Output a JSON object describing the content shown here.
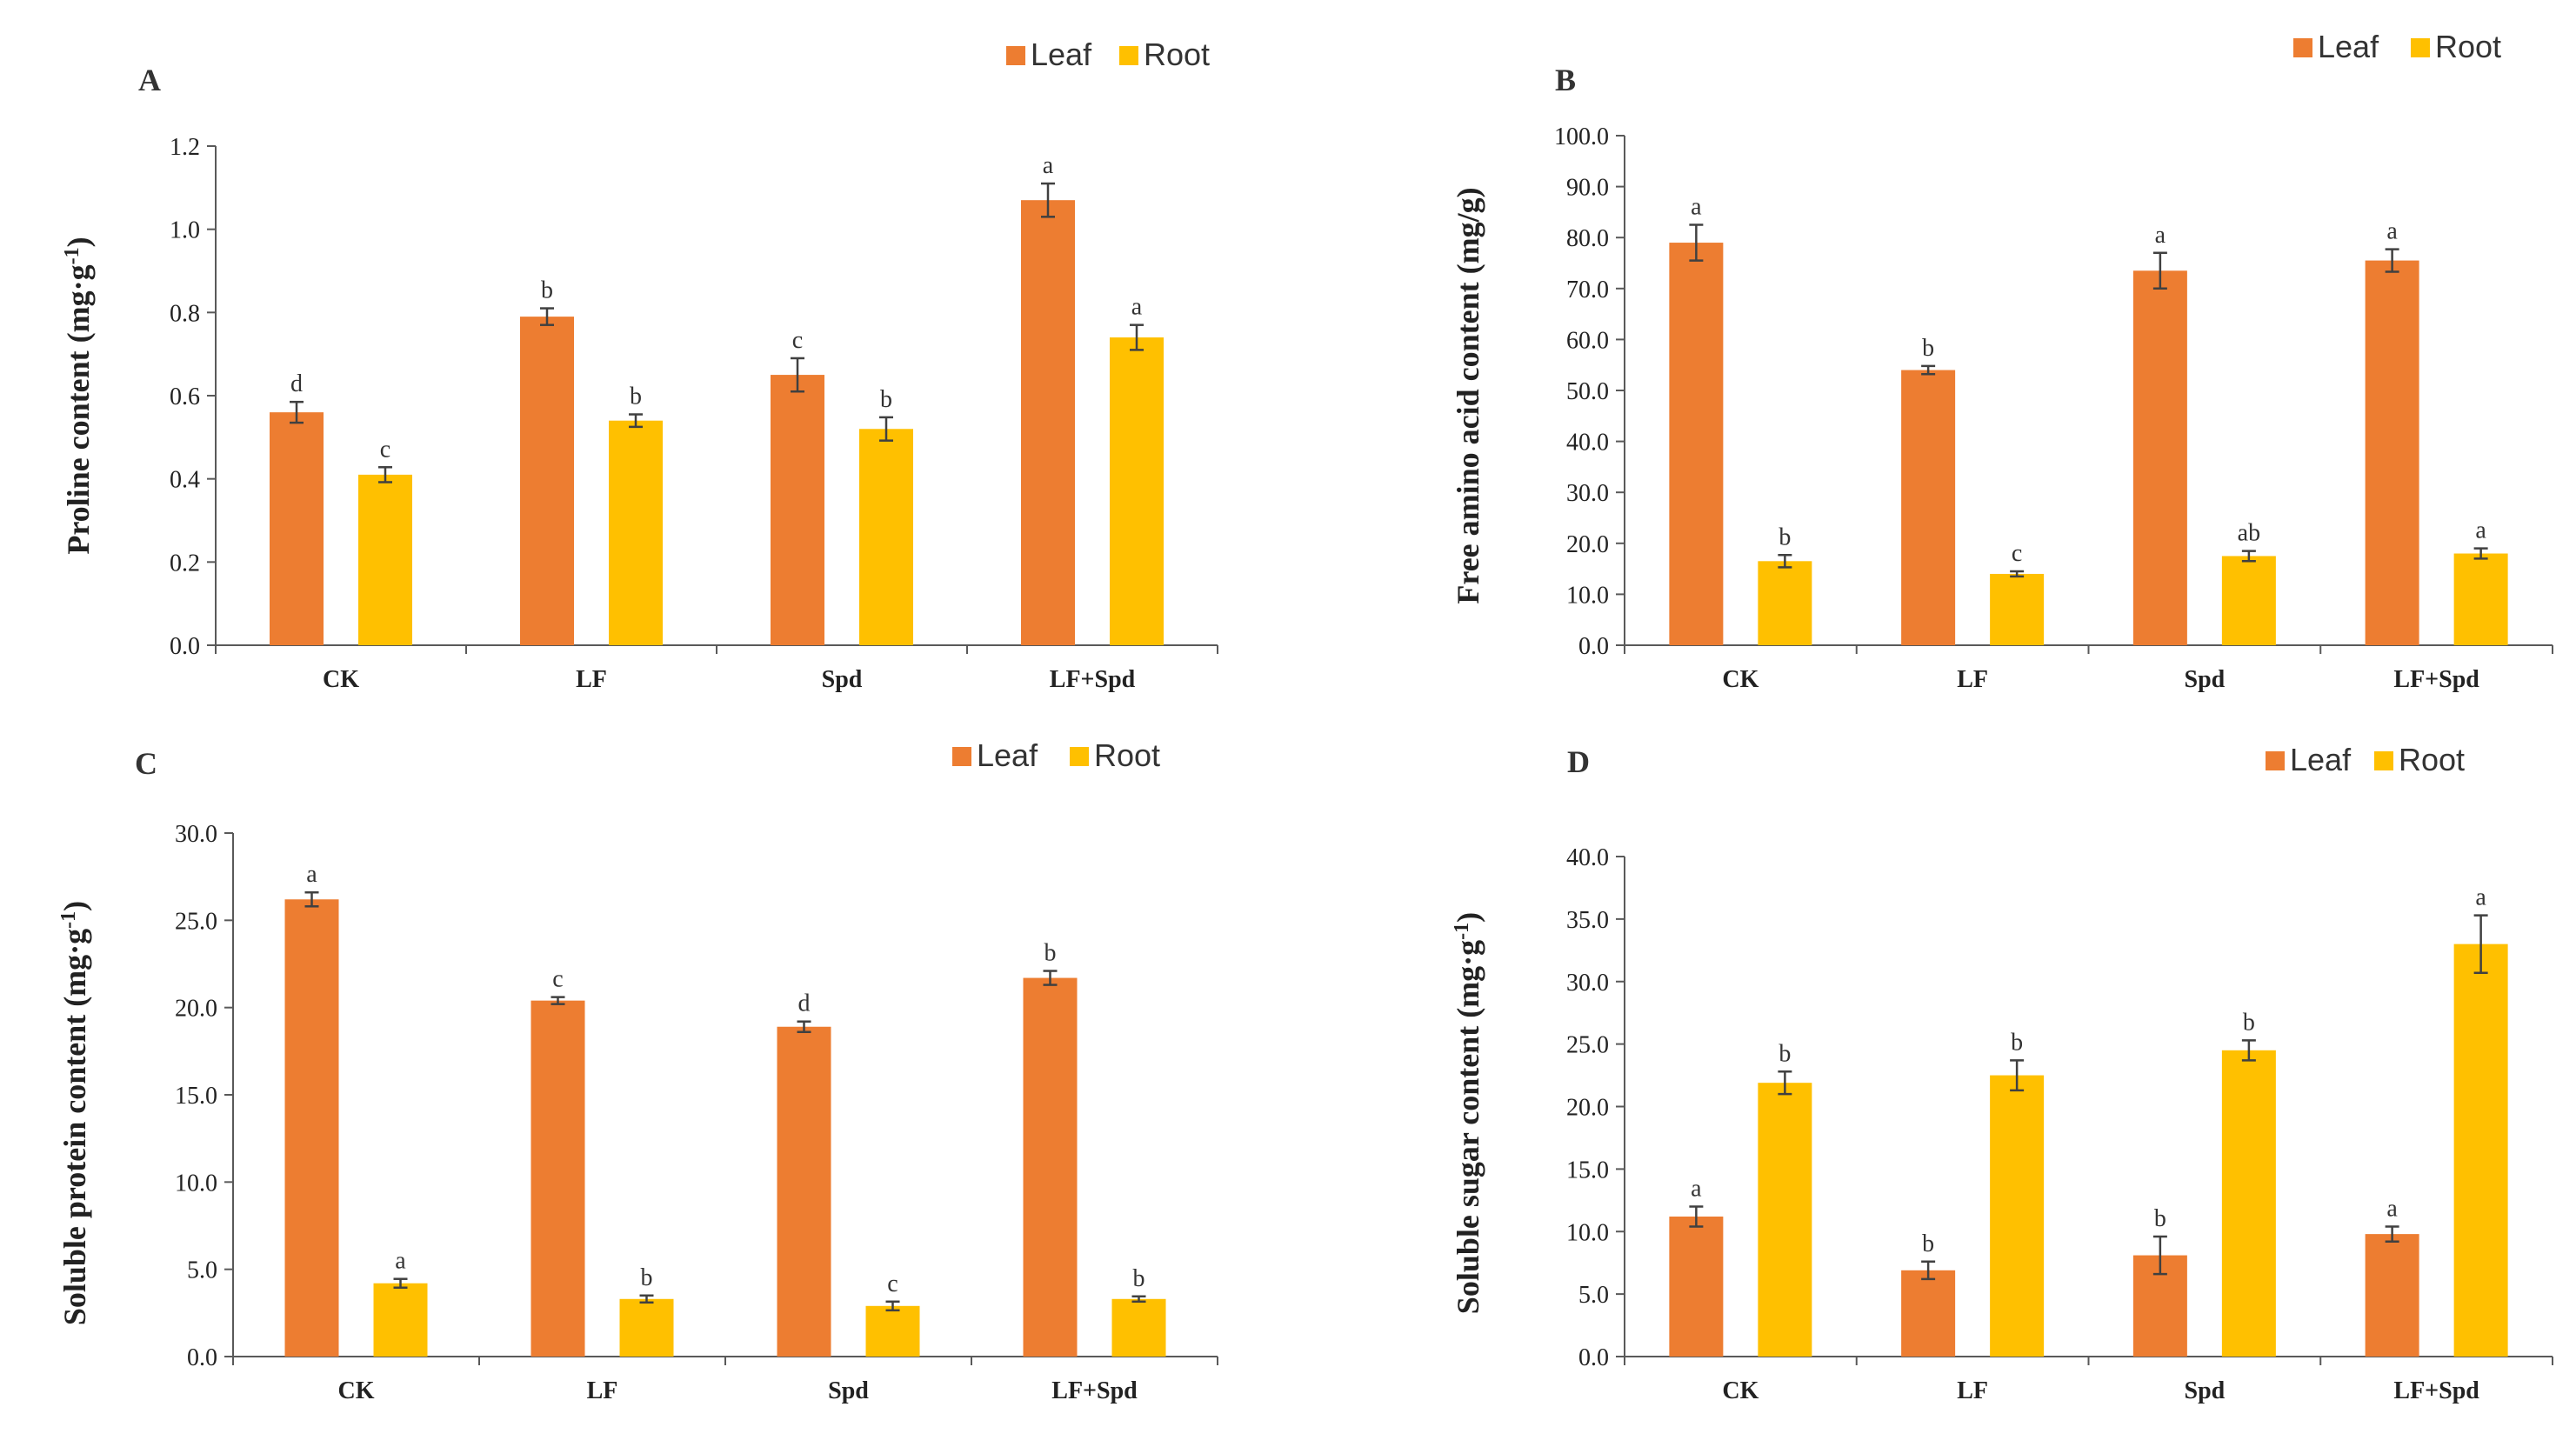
{
  "colors": {
    "leaf": "#ED7D31",
    "root": "#FFC000",
    "axis": "#595959",
    "error": "#404040"
  },
  "chart_data": [
    {
      "type": "bar",
      "panel": "A",
      "ylabel_main": "Proline content (mg·g",
      "ylabel_sup": "-1",
      "ylabel_end": ")",
      "categories": [
        "CK",
        "LF",
        "Spd",
        "LF+Spd"
      ],
      "ylim": [
        0,
        1.2
      ],
      "ystep": 0.2,
      "ydecimals": 1,
      "legend": [
        "Leaf",
        "Root"
      ],
      "series": [
        {
          "name": "Leaf",
          "values": [
            0.56,
            0.79,
            0.65,
            1.07
          ],
          "errors": [
            0.025,
            0.02,
            0.04,
            0.04
          ],
          "labels": [
            "d",
            "b",
            "c",
            "a"
          ]
        },
        {
          "name": "Root",
          "values": [
            0.41,
            0.54,
            0.52,
            0.74
          ],
          "errors": [
            0.018,
            0.015,
            0.028,
            0.03
          ],
          "labels": [
            "c",
            "b",
            "b",
            "a"
          ]
        }
      ]
    },
    {
      "type": "bar",
      "panel": "B",
      "ylabel_main": "Free amino acid content (mg/g)",
      "ylabel_sup": "",
      "ylabel_end": "",
      "categories": [
        "CK",
        "LF",
        "Spd",
        "LF+Spd"
      ],
      "ylim": [
        0,
        100
      ],
      "ystep": 10,
      "ydecimals": 1,
      "legend": [
        "Leaf",
        "Root"
      ],
      "series": [
        {
          "name": "Leaf",
          "values": [
            79.0,
            54.0,
            73.5,
            75.5
          ],
          "errors": [
            3.5,
            0.8,
            3.5,
            2.2
          ],
          "labels": [
            "a",
            "b",
            "a",
            "a"
          ]
        },
        {
          "name": "Root",
          "values": [
            16.5,
            14.0,
            17.5,
            18.0
          ],
          "errors": [
            1.2,
            0.5,
            1.0,
            1.0
          ],
          "labels": [
            "b",
            "c",
            "ab",
            "a"
          ]
        }
      ]
    },
    {
      "type": "bar",
      "panel": "C",
      "ylabel_main": "Soluble protein content (mg·g",
      "ylabel_sup": "-1",
      "ylabel_end": ")",
      "categories": [
        "CK",
        "LF",
        "Spd",
        "LF+Spd"
      ],
      "ylim": [
        0,
        30
      ],
      "ystep": 5,
      "ydecimals": 1,
      "legend": [
        "Leaf",
        "Root"
      ],
      "series": [
        {
          "name": "Leaf",
          "values": [
            26.2,
            20.4,
            18.9,
            21.7
          ],
          "errors": [
            0.4,
            0.2,
            0.3,
            0.4
          ],
          "labels": [
            "a",
            "c",
            "d",
            "b"
          ]
        },
        {
          "name": "Root",
          "values": [
            4.2,
            3.3,
            2.9,
            3.3
          ],
          "errors": [
            0.25,
            0.2,
            0.25,
            0.15
          ],
          "labels": [
            "a",
            "b",
            "c",
            "b"
          ]
        }
      ]
    },
    {
      "type": "bar",
      "panel": "D",
      "ylabel_main": "Soluble sugar content (mg·g",
      "ylabel_sup": "-1",
      "ylabel_end": ")",
      "categories": [
        "CK",
        "LF",
        "Spd",
        "LF+Spd"
      ],
      "ylim": [
        0,
        40
      ],
      "ystep": 5,
      "ydecimals": 1,
      "legend": [
        "Leaf",
        "Root"
      ],
      "series": [
        {
          "name": "Leaf",
          "values": [
            11.2,
            6.9,
            8.1,
            9.8
          ],
          "errors": [
            0.8,
            0.7,
            1.5,
            0.6
          ],
          "labels": [
            "a",
            "b",
            "b",
            "a"
          ]
        },
        {
          "name": "Root",
          "values": [
            21.9,
            22.5,
            24.5,
            33.0
          ],
          "errors": [
            0.9,
            1.2,
            0.8,
            2.3
          ],
          "labels": [
            "b",
            "b",
            "b",
            "a"
          ]
        }
      ]
    }
  ]
}
